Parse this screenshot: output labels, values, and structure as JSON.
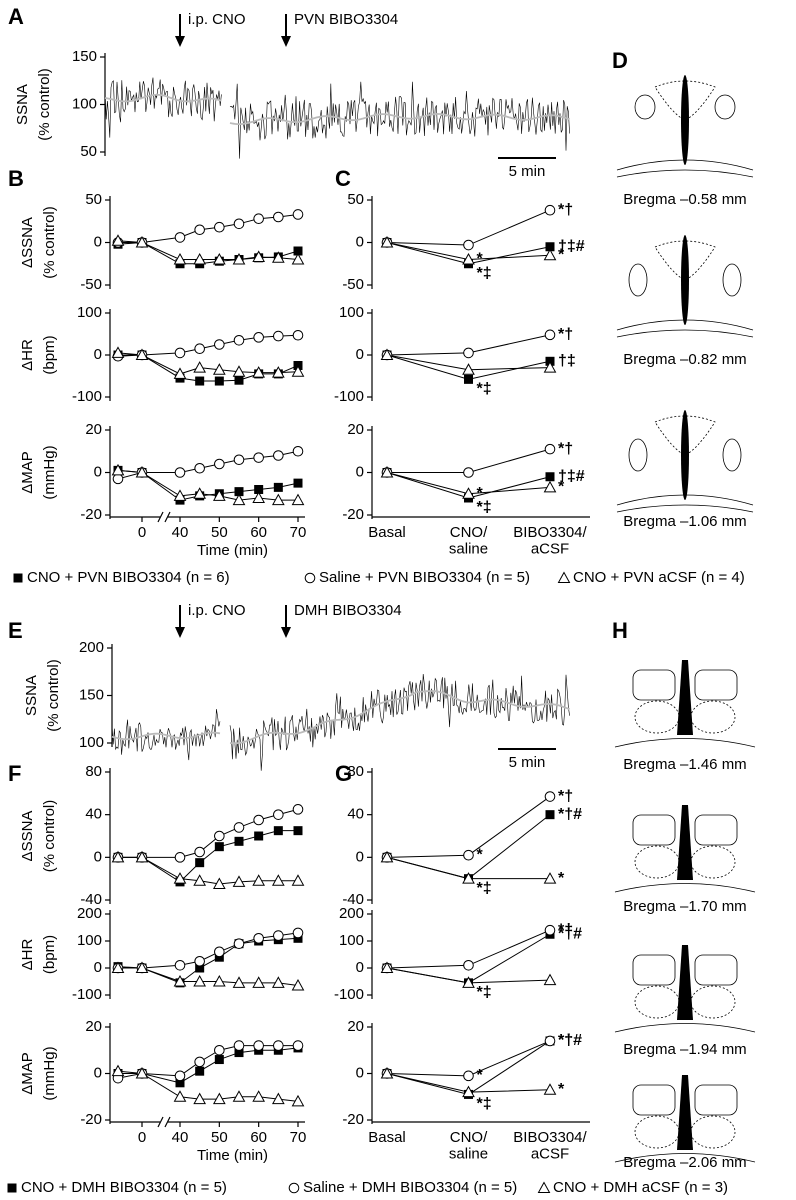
{
  "chart_data": [
    {
      "panel": "A",
      "type": "trace",
      "ylabel": [
        "SSNA",
        "(% control)"
      ],
      "ylim": [
        50,
        150
      ],
      "yticks": [
        50,
        100,
        150
      ],
      "arrows": [
        "i.p. CNO",
        "PVN BIBO3304"
      ],
      "scale_bar": "5 min"
    },
    {
      "panel": "B",
      "type": "line",
      "ylabel": [
        "ΔSSNA",
        "(% control)"
      ],
      "x": [
        -5,
        0,
        40,
        45,
        50,
        55,
        60,
        65,
        70
      ],
      "xlim": [
        -5,
        70
      ],
      "axis_break": true,
      "ylim": [
        -50,
        50
      ],
      "yticks": [
        -50,
        0,
        50
      ],
      "series": [
        {
          "marker": "square-filled",
          "color": "#000000",
          "values": [
            -2,
            0,
            -25,
            -25,
            -22,
            -20,
            -18,
            -17,
            -10
          ]
        },
        {
          "marker": "circle-open",
          "color": "#000000",
          "values": [
            0,
            0,
            6,
            15,
            18,
            22,
            28,
            30,
            33
          ]
        },
        {
          "marker": "triangle-open",
          "color": "#000000",
          "values": [
            2,
            0,
            -20,
            -20,
            -20,
            -20,
            -17,
            -18,
            -20
          ]
        }
      ]
    },
    {
      "type": "line",
      "ylabel": [
        "ΔHR",
        "(bpm)"
      ],
      "x": [
        -5,
        0,
        40,
        45,
        50,
        55,
        60,
        65,
        70
      ],
      "xlim": [
        -5,
        70
      ],
      "axis_break": true,
      "ylim": [
        -100,
        100
      ],
      "yticks": [
        -100,
        0,
        100
      ],
      "series": [
        {
          "marker": "square-filled",
          "color": "#000000",
          "values": [
            0,
            0,
            -55,
            -62,
            -62,
            -60,
            -45,
            -45,
            -25
          ]
        },
        {
          "marker": "circle-open",
          "color": "#000000",
          "values": [
            -3,
            0,
            5,
            15,
            25,
            35,
            42,
            45,
            47
          ]
        },
        {
          "marker": "triangle-open",
          "color": "#000000",
          "values": [
            5,
            0,
            -45,
            -30,
            -35,
            -40,
            -42,
            -42,
            -40
          ]
        }
      ]
    },
    {
      "type": "line",
      "ylabel": [
        "ΔMAP",
        "(mmHg)"
      ],
      "x": [
        -5,
        0,
        40,
        45,
        50,
        55,
        60,
        65,
        70
      ],
      "xlim": [
        -5,
        70
      ],
      "axis_break": true,
      "ylim": [
        -20,
        20
      ],
      "yticks": [
        -20,
        0,
        20
      ],
      "xticks": [
        0,
        40,
        50,
        60,
        70
      ],
      "xlabel": "Time (min)",
      "series": [
        {
          "marker": "square-filled",
          "color": "#000000",
          "values": [
            1,
            0,
            -13,
            -11,
            -10,
            -9,
            -8,
            -7,
            -5
          ]
        },
        {
          "marker": "circle-open",
          "color": "#000000",
          "values": [
            -3,
            0,
            0,
            2,
            4,
            6,
            7,
            8,
            10
          ]
        },
        {
          "marker": "triangle-open",
          "color": "#000000",
          "values": [
            1,
            0,
            -11,
            -10,
            -11,
            -13,
            -12,
            -13,
            -13
          ]
        }
      ]
    },
    {
      "panel": "C",
      "type": "line",
      "ylim": [
        -50,
        50
      ],
      "yticks": [
        -50,
        0,
        50
      ],
      "series": [
        {
          "marker": "square-filled",
          "color": "#000000",
          "values": [
            0,
            -25,
            -5
          ],
          "notes": [
            null,
            "*‡",
            "†‡#"
          ]
        },
        {
          "marker": "circle-open",
          "color": "#000000",
          "values": [
            0,
            -3,
            38
          ],
          "notes": [
            null,
            null,
            "*†"
          ]
        },
        {
          "marker": "triangle-open",
          "color": "#000000",
          "values": [
            0,
            -20,
            -15
          ],
          "notes": [
            null,
            "*",
            "*"
          ]
        }
      ]
    },
    {
      "type": "line",
      "ylim": [
        -100,
        100
      ],
      "yticks": [
        -100,
        0,
        100
      ],
      "series": [
        {
          "marker": "square-filled",
          "color": "#000000",
          "values": [
            0,
            -58,
            -15
          ],
          "notes": [
            null,
            "*‡",
            "†‡"
          ]
        },
        {
          "marker": "circle-open",
          "color": "#000000",
          "values": [
            0,
            5,
            48
          ],
          "notes": [
            null,
            null,
            "*†"
          ]
        },
        {
          "marker": "triangle-open",
          "color": "#000000",
          "values": [
            0,
            -35,
            -30
          ],
          "notes": [
            null,
            null,
            null
          ]
        }
      ]
    },
    {
      "type": "line",
      "ylim": [
        -20,
        20
      ],
      "yticks": [
        -20,
        0,
        20
      ],
      "categories": [
        "Basal",
        "CNO/\nsaline",
        "BIBO3304/\naCSF"
      ],
      "series": [
        {
          "marker": "square-filled",
          "color": "#000000",
          "values": [
            0,
            -12,
            -2
          ],
          "notes": [
            null,
            "*‡",
            "†‡#"
          ]
        },
        {
          "marker": "circle-open",
          "color": "#000000",
          "values": [
            0,
            0,
            11
          ],
          "notes": [
            null,
            null,
            "*†"
          ]
        },
        {
          "marker": "triangle-open",
          "color": "#000000",
          "values": [
            0,
            -10,
            -7
          ],
          "notes": [
            null,
            "*",
            "*"
          ]
        }
      ]
    },
    {
      "panel": "E",
      "type": "trace",
      "ylabel": [
        "SSNA",
        "(% control)"
      ],
      "ylim": [
        100,
        200
      ],
      "yticks": [
        100,
        150,
        200
      ],
      "arrows": [
        "i.p. CNO",
        "DMH BIBO3304"
      ],
      "scale_bar": "5 min"
    },
    {
      "panel": "F",
      "type": "line",
      "ylabel": [
        "ΔSSNA",
        "(% control)"
      ],
      "x": [
        -5,
        0,
        40,
        45,
        50,
        55,
        60,
        65,
        70
      ],
      "xlim": [
        -5,
        70
      ],
      "axis_break": true,
      "ylim": [
        -40,
        80
      ],
      "yticks": [
        -40,
        0,
        40,
        80
      ],
      "series": [
        {
          "marker": "square-filled",
          "color": "#000000",
          "values": [
            0,
            0,
            -23,
            -5,
            10,
            15,
            20,
            25,
            25
          ]
        },
        {
          "marker": "circle-open",
          "color": "#000000",
          "values": [
            0,
            0,
            0,
            5,
            20,
            28,
            35,
            40,
            45
          ]
        },
        {
          "marker": "triangle-open",
          "color": "#000000",
          "values": [
            0,
            0,
            -20,
            -22,
            -25,
            -23,
            -22,
            -22,
            -22
          ]
        }
      ]
    },
    {
      "type": "line",
      "ylabel": [
        "ΔHR",
        "(bpm)"
      ],
      "x": [
        -5,
        0,
        40,
        45,
        50,
        55,
        60,
        65,
        70
      ],
      "xlim": [
        -5,
        70
      ],
      "axis_break": true,
      "ylim": [
        -100,
        200
      ],
      "yticks": [
        -100,
        0,
        100,
        200
      ],
      "series": [
        {
          "marker": "square-filled",
          "color": "#000000",
          "values": [
            5,
            0,
            -55,
            0,
            40,
            90,
            100,
            105,
            110
          ]
        },
        {
          "marker": "circle-open",
          "color": "#000000",
          "values": [
            0,
            0,
            10,
            25,
            60,
            90,
            110,
            120,
            130
          ]
        },
        {
          "marker": "triangle-open",
          "color": "#000000",
          "values": [
            0,
            0,
            -50,
            -50,
            -50,
            -55,
            -55,
            -55,
            -65
          ]
        }
      ]
    },
    {
      "type": "line",
      "ylabel": [
        "ΔMAP",
        "(mmHg)"
      ],
      "x": [
        -5,
        0,
        40,
        45,
        50,
        55,
        60,
        65,
        70
      ],
      "xlim": [
        -5,
        70
      ],
      "axis_break": true,
      "ylim": [
        -20,
        20
      ],
      "yticks": [
        -20,
        0,
        20
      ],
      "xticks": [
        0,
        40,
        50,
        60,
        70
      ],
      "xlabel": "Time (min)",
      "series": [
        {
          "marker": "square-filled",
          "color": "#000000",
          "values": [
            0,
            0,
            -4,
            1,
            6,
            9,
            10,
            10,
            11
          ]
        },
        {
          "marker": "circle-open",
          "color": "#000000",
          "values": [
            -2,
            0,
            -1,
            5,
            10,
            12,
            12,
            12,
            12
          ]
        },
        {
          "marker": "triangle-open",
          "color": "#000000",
          "values": [
            1,
            0,
            -10,
            -11,
            -11,
            -10,
            -10,
            -11,
            -12
          ]
        }
      ]
    },
    {
      "panel": "G",
      "type": "line",
      "ylim": [
        -40,
        80
      ],
      "yticks": [
        -40,
        0,
        40,
        80
      ],
      "series": [
        {
          "marker": "square-filled",
          "color": "#000000",
          "values": [
            0,
            -20,
            40
          ],
          "notes": [
            null,
            "*‡",
            "*†#"
          ]
        },
        {
          "marker": "circle-open",
          "color": "#000000",
          "values": [
            0,
            2,
            57
          ],
          "notes": [
            null,
            "*",
            "*†"
          ]
        },
        {
          "marker": "triangle-open",
          "color": "#000000",
          "values": [
            0,
            -20,
            -20
          ],
          "notes": [
            null,
            null,
            "*"
          ]
        }
      ]
    },
    {
      "type": "line",
      "ylim": [
        -100,
        200
      ],
      "yticks": [
        -100,
        0,
        100,
        200
      ],
      "series": [
        {
          "marker": "square-filled",
          "color": "#000000",
          "values": [
            0,
            -55,
            125
          ],
          "notes": [
            null,
            "*‡",
            "*†#"
          ]
        },
        {
          "marker": "circle-open",
          "color": "#000000",
          "values": [
            0,
            10,
            140
          ],
          "notes": [
            null,
            null,
            "*†"
          ]
        },
        {
          "marker": "triangle-open",
          "color": "#000000",
          "values": [
            0,
            -55,
            -45
          ],
          "notes": [
            null,
            null,
            null
          ]
        }
      ]
    },
    {
      "type": "line",
      "ylim": [
        -20,
        20
      ],
      "yticks": [
        -20,
        0,
        20
      ],
      "categories": [
        "Basal",
        "CNO/\nsaline",
        "BIBO3304/\naCSF"
      ],
      "series": [
        {
          "marker": "square-filled",
          "color": "#000000",
          "values": [
            0,
            -9,
            14
          ],
          "notes": [
            null,
            "*‡",
            "*†#"
          ]
        },
        {
          "marker": "circle-open",
          "color": "#000000",
          "values": [
            0,
            -1,
            14
          ],
          "notes": [
            null,
            "*",
            "*†"
          ]
        },
        {
          "marker": "triangle-open",
          "color": "#000000",
          "values": [
            0,
            -8,
            -7
          ],
          "notes": [
            null,
            null,
            "*"
          ]
        }
      ]
    }
  ],
  "legends": [
    [
      "CNO + PVN BIBO3304 (n = 6)",
      "Saline + PVN BIBO3304 (n = 5)",
      "CNO + PVN aCSF (n = 4)"
    ],
    [
      "CNO + DMH BIBO3304 (n = 5)",
      "Saline + DMH BIBO3304 (n = 5)",
      "CNO + DMH aCSF (n = 3)"
    ]
  ],
  "diagrams": [
    {
      "panel": "D",
      "sections": [
        "Bregma –0.58 mm",
        "Bregma –0.82 mm",
        "Bregma –1.06 mm"
      ]
    },
    {
      "panel": "H",
      "sections": [
        "Bregma –1.46 mm",
        "Bregma –1.70 mm",
        "Bregma –1.94 mm",
        "Bregma –2.06 mm"
      ]
    }
  ]
}
